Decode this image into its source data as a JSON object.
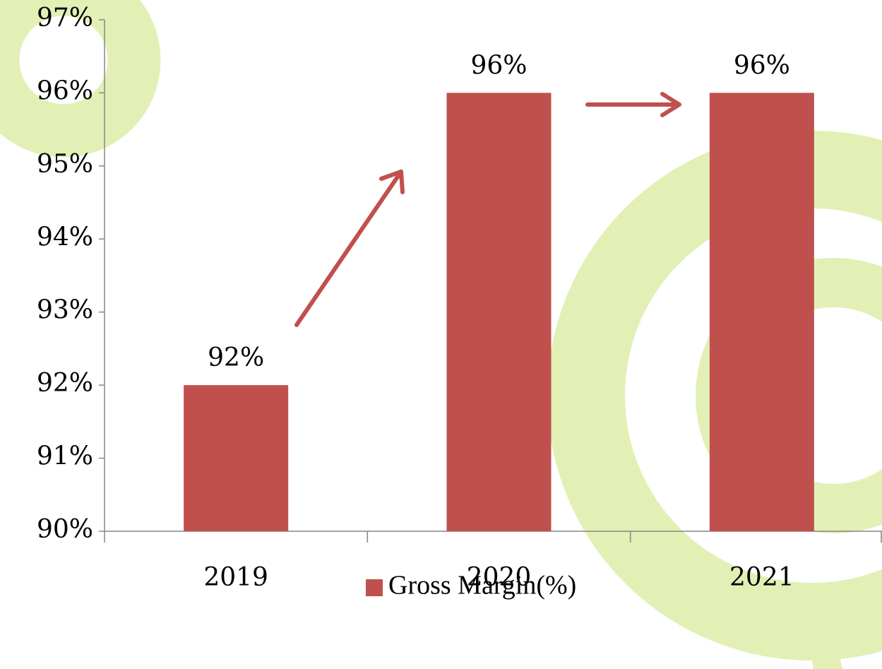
{
  "chart_data": {
    "type": "bar",
    "categories": [
      "2019",
      "2020",
      "2021"
    ],
    "series": [
      {
        "name": "Gross Margin(%)",
        "color": "#c0504d",
        "values": [
          92,
          96,
          96
        ],
        "value_labels": [
          "92%",
          "96%",
          "96%"
        ]
      }
    ],
    "ylim": [
      90,
      97
    ],
    "yticks": [
      {
        "value": 90,
        "label": "90%"
      },
      {
        "value": 91,
        "label": "91%"
      },
      {
        "value": 92,
        "label": "92%"
      },
      {
        "value": 93,
        "label": "93%"
      },
      {
        "value": 94,
        "label": "94%"
      },
      {
        "value": 95,
        "label": "95%"
      },
      {
        "value": 96,
        "label": "96%"
      },
      {
        "value": 97,
        "label": "97%"
      }
    ],
    "legend": "bottom"
  }
}
